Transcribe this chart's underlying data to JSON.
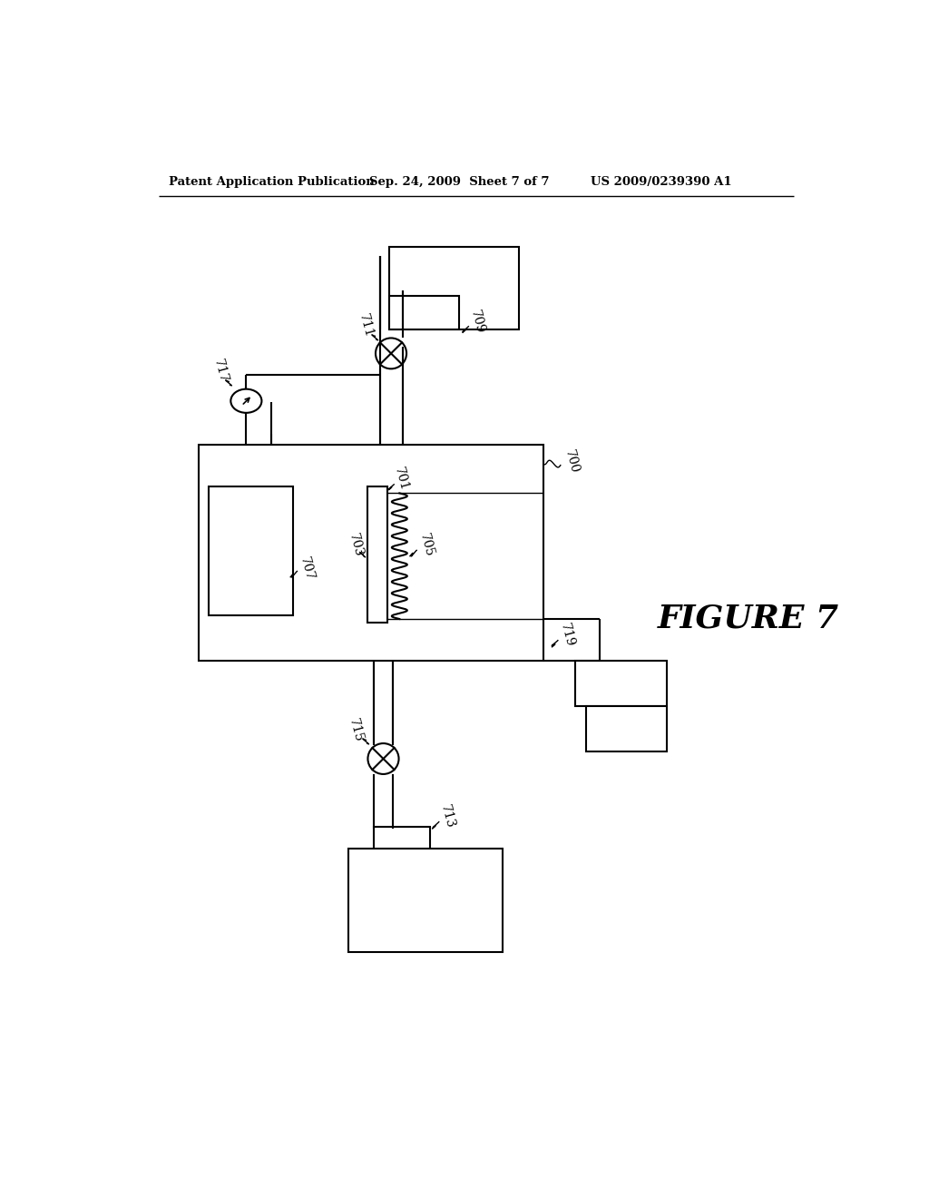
{
  "title_left": "Patent Application Publication",
  "title_mid": "Sep. 24, 2009  Sheet 7 of 7",
  "title_right": "US 2009/0239390 A1",
  "figure_label": "FIGURE 7",
  "bg_color": "#ffffff",
  "line_color": "#000000"
}
